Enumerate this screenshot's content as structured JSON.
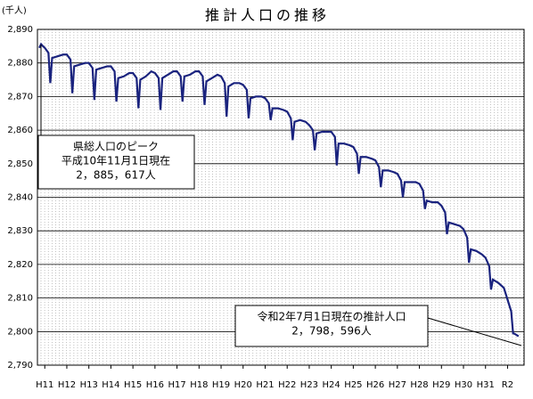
{
  "chart_data": {
    "type": "line",
    "title": "推計人口の推移",
    "y_unit": "(千人)",
    "x": [
      -3,
      -2,
      -1,
      0,
      2,
      3,
      4,
      7,
      10,
      12,
      14,
      15,
      16,
      19,
      22,
      24,
      26,
      27,
      28,
      31,
      34,
      36,
      38,
      39,
      40,
      43,
      46,
      48,
      50,
      51,
      52,
      55,
      58,
      60,
      62,
      63,
      64,
      67,
      70,
      72,
      74,
      75,
      76,
      79,
      82,
      84,
      86,
      87,
      88,
      91,
      94,
      96,
      98,
      99,
      100,
      103,
      106,
      108,
      110,
      111,
      112,
      115,
      118,
      120,
      122,
      123,
      124,
      127,
      130,
      132,
      134,
      135,
      136,
      139,
      142,
      144,
      146,
      147,
      148,
      151,
      154,
      156,
      158,
      159,
      160,
      163,
      166,
      168,
      170,
      171,
      172,
      175,
      178,
      180,
      182,
      183,
      184,
      187,
      190,
      192,
      194,
      195,
      196,
      199,
      202,
      204,
      206,
      207,
      208,
      211,
      214,
      216,
      218,
      219,
      220,
      223,
      226,
      228,
      230,
      231,
      232,
      235,
      238,
      240,
      242,
      243,
      244,
      247,
      250,
      252,
      254,
      255,
      256,
      258
    ],
    "series": [
      {
        "name": "推計人口",
        "color": "#1a237e",
        "values": [
          2884.5,
          2885.6,
          2885,
          2884.5,
          2883,
          2874,
          2881.5,
          2882,
          2882.5,
          2882.5,
          2881,
          2871,
          2879,
          2879.5,
          2880,
          2880,
          2878.5,
          2869,
          2878,
          2878.5,
          2879,
          2879,
          2877.5,
          2868.5,
          2875.5,
          2876,
          2877,
          2877,
          2875.5,
          2866.5,
          2875,
          2876,
          2877.5,
          2877,
          2875.5,
          2866,
          2875.5,
          2876.5,
          2877.5,
          2877.5,
          2876,
          2868.5,
          2876,
          2876.5,
          2877.5,
          2877.5,
          2876,
          2867.5,
          2874.5,
          2875.5,
          2876.5,
          2876,
          2874,
          2864,
          2873,
          2874,
          2874,
          2873.5,
          2872,
          2863.5,
          2869.5,
          2870,
          2870,
          2869.5,
          2868,
          2863,
          2866.5,
          2866.5,
          2866,
          2865.5,
          2863.5,
          2857,
          2862.5,
          2863,
          2862.5,
          2861.5,
          2860,
          2854,
          2859,
          2859.5,
          2859.5,
          2859.5,
          2858,
          2849.5,
          2856,
          2856,
          2855.5,
          2855,
          2853,
          2847,
          2852,
          2852,
          2851.5,
          2851,
          2849,
          2843,
          2848,
          2848,
          2847.5,
          2847,
          2845,
          2840,
          2844.5,
          2844.5,
          2844.5,
          2844,
          2842,
          2836.5,
          2839,
          2838.5,
          2838.5,
          2837.5,
          2835.5,
          2829,
          2832.5,
          2832,
          2831.5,
          2830.5,
          2828,
          2820.5,
          2824.5,
          2824,
          2823,
          2822,
          2819.5,
          2812.5,
          2815.5,
          2814.5,
          2813,
          2809.5,
          2806,
          2799.5,
          2799.3,
          2798.6
        ]
      }
    ],
    "xlim": [
      -4,
      261
    ],
    "xticks": [
      {
        "value": 0,
        "label": "H11"
      },
      {
        "value": 12,
        "label": "H12"
      },
      {
        "value": 24,
        "label": "H13"
      },
      {
        "value": 36,
        "label": "H14"
      },
      {
        "value": 48,
        "label": "H15"
      },
      {
        "value": 60,
        "label": "H16"
      },
      {
        "value": 72,
        "label": "H17"
      },
      {
        "value": 84,
        "label": "H18"
      },
      {
        "value": 96,
        "label": "H19"
      },
      {
        "value": 108,
        "label": "H20"
      },
      {
        "value": 120,
        "label": "H21"
      },
      {
        "value": 132,
        "label": "H22"
      },
      {
        "value": 144,
        "label": "H23"
      },
      {
        "value": 156,
        "label": "H24"
      },
      {
        "value": 168,
        "label": "H25"
      },
      {
        "value": 180,
        "label": "H26"
      },
      {
        "value": 192,
        "label": "H27"
      },
      {
        "value": 204,
        "label": "H28"
      },
      {
        "value": 216,
        "label": "H29"
      },
      {
        "value": 228,
        "label": "H30"
      },
      {
        "value": 240,
        "label": "H31"
      },
      {
        "value": 252,
        "label": "R2"
      }
    ],
    "ylim": [
      2790,
      2890
    ],
    "yticks": [
      {
        "value": 2790,
        "label": "2,790"
      },
      {
        "value": 2800,
        "label": "2,800"
      },
      {
        "value": 2810,
        "label": "2,810"
      },
      {
        "value": 2820,
        "label": "2,820"
      },
      {
        "value": 2830,
        "label": "2,830"
      },
      {
        "value": 2840,
        "label": "2,840"
      },
      {
        "value": 2850,
        "label": "2,850"
      },
      {
        "value": 2860,
        "label": "2,860"
      },
      {
        "value": 2870,
        "label": "2,870"
      },
      {
        "value": 2880,
        "label": "2,880"
      },
      {
        "value": 2890,
        "label": "2,890"
      }
    ],
    "grid": true,
    "annotations": [
      [
        "県総人口のピーク",
        "平成10年11月1日現在",
        "2，885，617人"
      ],
      [
        "令和2年7月1日現在の推計人口",
        "2，798，596人"
      ]
    ]
  }
}
